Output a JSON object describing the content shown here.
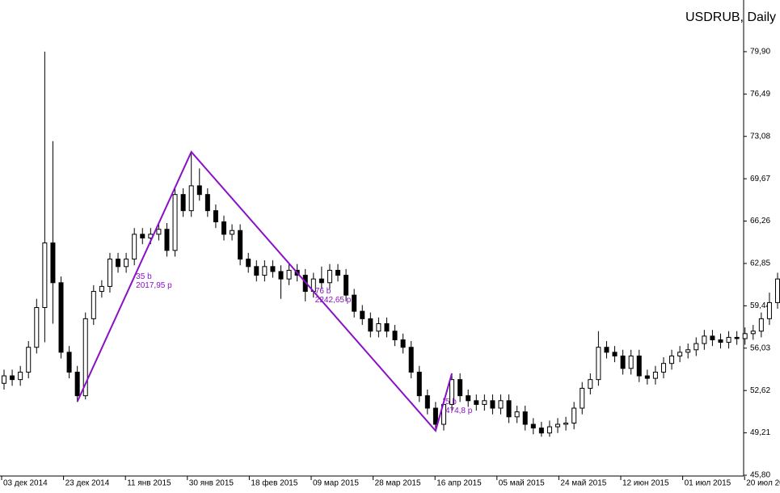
{
  "chart_data": {
    "type": "candlestick",
    "title": "USDRUB, Daily",
    "series": {
      "open": [
        53.2,
        53.8,
        53.5,
        54.1,
        56.1,
        59.3,
        64.5,
        61.3,
        55.7,
        54.1,
        52.2,
        58.4,
        60.6,
        61.0,
        63.2,
        62.6,
        63.2,
        65.2,
        64.9,
        65.2,
        65.6,
        63.9,
        68.4,
        67.1,
        69.1,
        68.4,
        67.1,
        66.2,
        65.2,
        65.5,
        63.2,
        62.6,
        61.9,
        62.6,
        62.2,
        61.6,
        62.3,
        61.9,
        60.6,
        61.6,
        61.3,
        62.3,
        61.9,
        60.3,
        59.0,
        58.4,
        57.4,
        58.0,
        57.4,
        56.7,
        56.1,
        54.1,
        52.2,
        51.2,
        49.9,
        51.5,
        53.5,
        52.2,
        51.8,
        51.5,
        51.8,
        51.2,
        51.8,
        50.5,
        50.9,
        49.9,
        49.6,
        49.2,
        49.7,
        49.9,
        50.0,
        51.2,
        52.8,
        53.5,
        56.1,
        55.7,
        55.4,
        54.4,
        55.4,
        53.8,
        53.6,
        54.1,
        54.8,
        55.4,
        55.7,
        55.9,
        56.4,
        57.0,
        56.7,
        56.5,
        56.9,
        56.8,
        57.2,
        57.4,
        58.4,
        59.7
      ],
      "high": [
        54.3,
        54.3,
        54.6,
        56.6,
        60.0,
        79.9,
        72.7,
        61.8,
        56.2,
        54.6,
        58.9,
        61.1,
        61.5,
        63.7,
        63.7,
        63.7,
        65.7,
        65.7,
        65.7,
        66.1,
        66.1,
        68.9,
        68.9,
        71.83,
        70.5,
        68.9,
        67.6,
        66.7,
        66.0,
        66.0,
        63.7,
        63.1,
        63.1,
        63.1,
        62.7,
        62.8,
        62.8,
        62.4,
        62.1,
        62.6,
        62.8,
        62.8,
        62.4,
        60.8,
        59.5,
        58.9,
        58.5,
        58.5,
        57.9,
        57.2,
        56.6,
        54.6,
        52.7,
        51.7,
        52.0,
        54.0,
        54.0,
        52.7,
        52.3,
        52.3,
        52.3,
        52.3,
        52.3,
        51.4,
        51.4,
        50.4,
        50.1,
        50.2,
        50.4,
        50.5,
        51.7,
        53.3,
        54.0,
        57.4,
        56.6,
        56.2,
        55.9,
        55.9,
        55.9,
        54.3,
        54.6,
        55.3,
        55.9,
        56.2,
        56.4,
        56.9,
        57.5,
        57.5,
        57.2,
        57.4,
        57.4,
        57.7,
        57.9,
        58.9,
        60.5,
        62.1
      ],
      "low": [
        52.7,
        53.0,
        53.0,
        53.6,
        55.6,
        56.5,
        58.0,
        55.2,
        53.6,
        51.7,
        51.9,
        57.9,
        60.1,
        60.5,
        62.1,
        62.1,
        62.7,
        64.4,
        64.4,
        64.7,
        63.4,
        63.4,
        66.6,
        66.6,
        67.9,
        66.6,
        65.7,
        64.7,
        64.7,
        62.7,
        62.1,
        61.4,
        61.4,
        61.7,
        60.0,
        61.1,
        61.4,
        59.8,
        60.1,
        60.8,
        60.8,
        61.4,
        59.8,
        58.5,
        57.9,
        56.9,
        56.9,
        56.9,
        56.2,
        55.6,
        53.6,
        51.7,
        50.7,
        49.38,
        49.4,
        51.0,
        51.7,
        51.3,
        51.0,
        51.0,
        50.7,
        50.7,
        50.0,
        50.0,
        49.4,
        49.1,
        48.9,
        48.9,
        49.2,
        49.4,
        49.5,
        50.7,
        52.3,
        53.0,
        55.2,
        54.9,
        53.9,
        53.9,
        53.3,
        53.1,
        53.1,
        53.6,
        54.3,
        54.9,
        55.2,
        55.4,
        55.9,
        56.2,
        56.0,
        56.0,
        56.3,
        56.3,
        56.7,
        56.9,
        57.9,
        59.2
      ],
      "close": [
        53.8,
        53.5,
        54.1,
        56.1,
        59.3,
        64.5,
        61.3,
        55.7,
        54.1,
        52.2,
        58.4,
        60.6,
        61.0,
        63.2,
        62.6,
        63.2,
        65.2,
        64.9,
        65.2,
        65.6,
        63.9,
        68.4,
        67.1,
        69.1,
        68.4,
        67.1,
        66.2,
        65.2,
        65.5,
        63.2,
        62.6,
        61.9,
        62.6,
        62.2,
        61.6,
        62.3,
        61.9,
        60.6,
        61.6,
        61.3,
        62.3,
        61.9,
        60.3,
        59.0,
        58.4,
        57.4,
        58.0,
        57.4,
        56.7,
        56.1,
        54.1,
        52.2,
        51.2,
        49.9,
        51.5,
        53.5,
        52.2,
        51.8,
        51.5,
        51.8,
        51.2,
        51.8,
        50.5,
        50.9,
        49.9,
        49.6,
        49.2,
        49.7,
        49.9,
        50.0,
        51.2,
        52.8,
        53.5,
        56.1,
        55.7,
        55.4,
        54.4,
        55.4,
        53.8,
        53.6,
        54.1,
        54.8,
        55.4,
        55.7,
        55.9,
        56.4,
        57.0,
        56.7,
        56.5,
        56.9,
        56.8,
        57.2,
        57.4,
        58.4,
        59.7,
        61.6
      ]
    },
    "up_color": "#ffffff",
    "down_color": "#000000",
    "ylim": [
      45.8,
      84.06
    ],
    "yticks": [
      {
        "value": 45.8,
        "label": "45,80"
      },
      {
        "value": 49.21,
        "label": "49,21"
      },
      {
        "value": 52.62,
        "label": "52,62"
      },
      {
        "value": 56.03,
        "label": "56,03"
      },
      {
        "value": 59.44,
        "label": "59,44"
      },
      {
        "value": 62.85,
        "label": "62,85"
      },
      {
        "value": 66.26,
        "label": "66,26"
      },
      {
        "value": 69.67,
        "label": "69,67"
      },
      {
        "value": 73.08,
        "label": "73,08"
      },
      {
        "value": 76.49,
        "label": "76,49"
      },
      {
        "value": 79.9,
        "label": "79,90"
      }
    ],
    "x_labels": [
      "03 дек 2014",
      "23 дек 2014",
      "11 янв 2015",
      "30 янв 2015",
      "18 фев 2015",
      "09 мар 2015",
      "28 мар 2015",
      "16 апр 2015",
      "05 май 2015",
      "24 май 2015",
      "12 июн 2015",
      "01 июл 2015",
      "20 июл 20"
    ],
    "zigzag": {
      "index": [
        9,
        23,
        53,
        55
      ],
      "values": [
        51.72,
        71.83,
        49.38,
        54.0
      ],
      "color": "#8a10c8"
    },
    "annotations": [
      {
        "lines": [
          "35 b",
          "2017,95 p"
        ]
      },
      {
        "lines": [
          "76 b",
          "2242,65 p"
        ]
      },
      {
        "lines": [
          "5 b",
          "474,8 p"
        ]
      }
    ]
  }
}
